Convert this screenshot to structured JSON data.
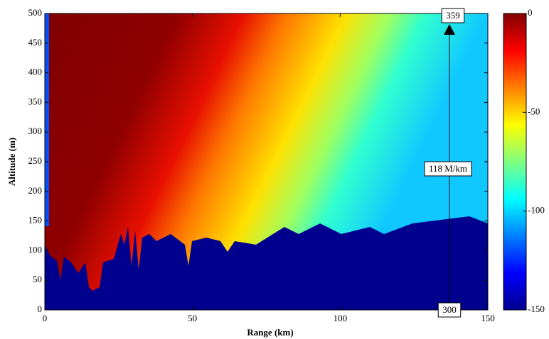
{
  "chart_data": {
    "type": "heatmap",
    "xlabel": "Range (km)",
    "ylabel": "Altitude (m)",
    "xlim": [
      0,
      150
    ],
    "xticks": [
      0,
      50,
      100,
      150
    ],
    "ylim": [
      0,
      500
    ],
    "yticks": [
      0,
      50,
      100,
      150,
      200,
      250,
      300,
      350,
      400,
      450,
      500
    ],
    "colormap": "jet",
    "colorbar": {
      "lim": [
        -150,
        0
      ],
      "ticks": [
        0,
        -50,
        -100,
        -150
      ]
    },
    "annotations": [
      {
        "text": "359"
      },
      {
        "text": "118 M/km"
      },
      {
        "text": "300"
      }
    ]
  }
}
